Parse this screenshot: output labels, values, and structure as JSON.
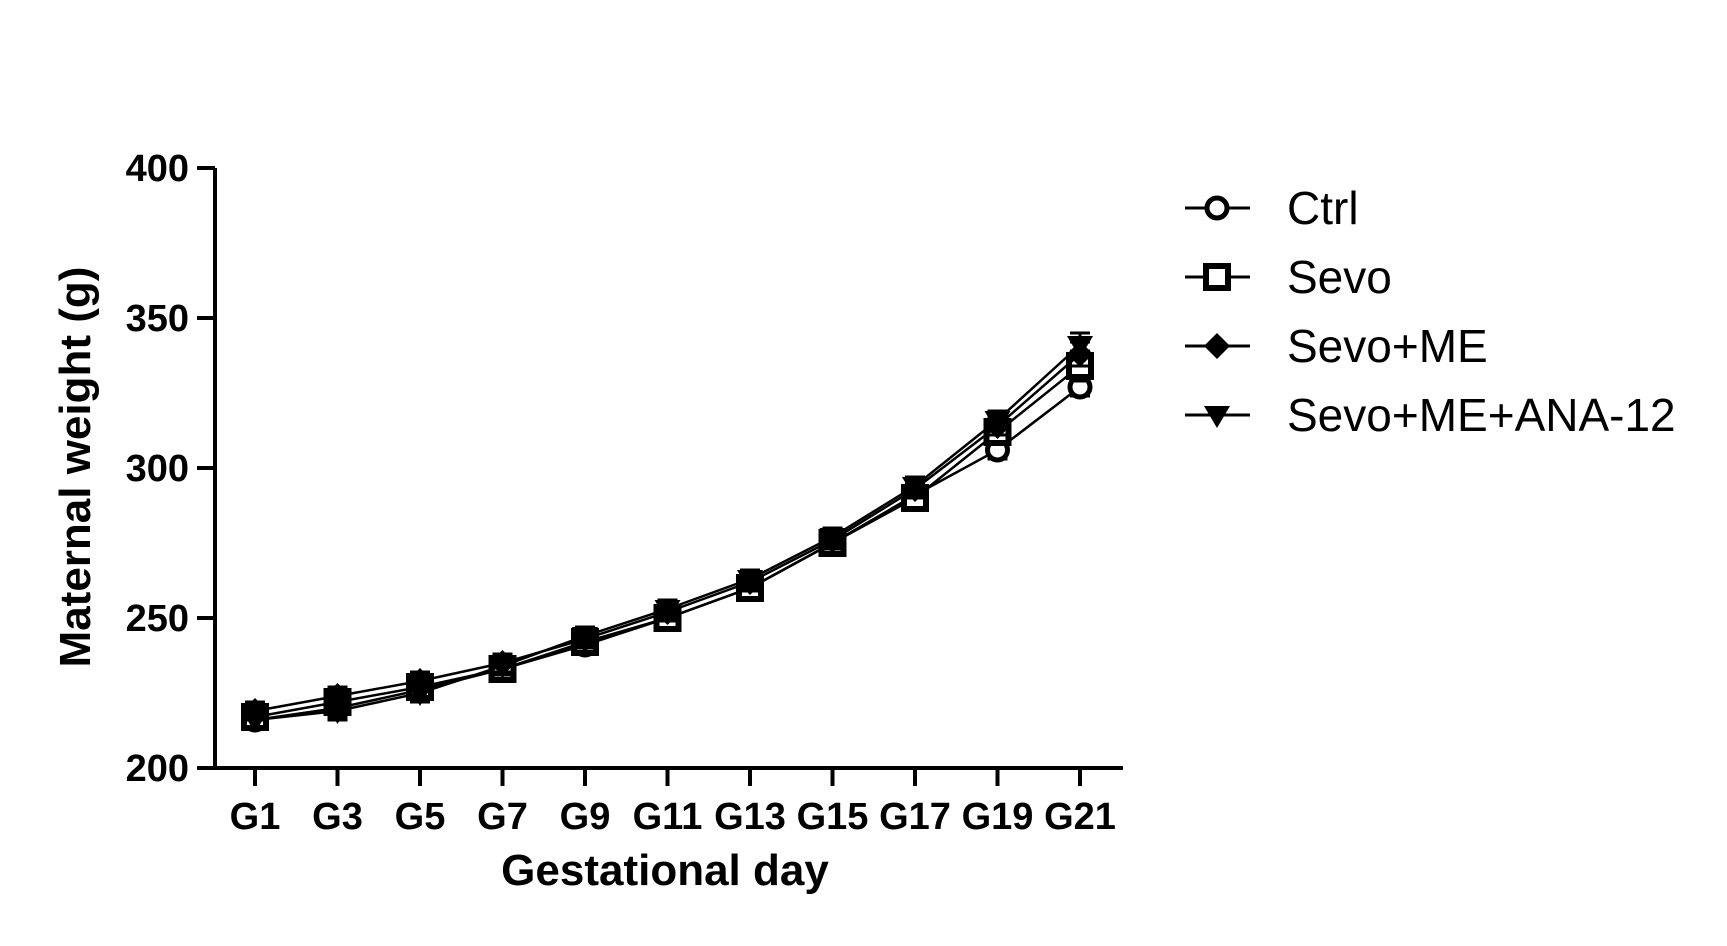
{
  "chart_data": {
    "type": "line",
    "title": "",
    "xlabel": "Gestational day",
    "ylabel": "Maternal weight (g)",
    "categories": [
      "G1",
      "G3",
      "G5",
      "G7",
      "G9",
      "G11",
      "G13",
      "G15",
      "G17",
      "G19",
      "G21"
    ],
    "ylim": [
      200,
      400
    ],
    "yticks": [
      "200",
      "250",
      "300",
      "350",
      "400"
    ],
    "grid": false,
    "legend_position": "right",
    "series": [
      {
        "name": "Ctrl",
        "marker": "open-circle",
        "values": [
          216,
          220,
          226,
          233,
          241,
          250,
          260,
          275,
          291,
          306,
          327
        ],
        "errors": [
          3,
          3,
          3,
          3,
          3,
          3,
          3,
          3,
          4,
          3,
          3
        ]
      },
      {
        "name": "Sevo",
        "marker": "open-square",
        "values": [
          217,
          222,
          227,
          233,
          242,
          250,
          260,
          275,
          290,
          312,
          334
        ],
        "errors": [
          3,
          3,
          3,
          3,
          3,
          3,
          3,
          3,
          4,
          4,
          5
        ]
      },
      {
        "name": "Sevo+ME",
        "marker": "filled-diamond",
        "values": [
          219,
          224,
          229,
          235,
          243,
          252,
          262,
          276,
          293,
          314,
          338
        ],
        "errors": [
          3,
          3,
          3,
          3,
          3,
          3,
          3,
          3,
          3,
          3,
          4
        ]
      },
      {
        "name": "Sevo+ME+ANA-12",
        "marker": "filled-triangle-down",
        "values": [
          216,
          219,
          225,
          234,
          244,
          253,
          263,
          277,
          294,
          316,
          341
        ],
        "errors": [
          3,
          3,
          3,
          3,
          3,
          3,
          3,
          3,
          3,
          3,
          4
        ]
      }
    ]
  }
}
